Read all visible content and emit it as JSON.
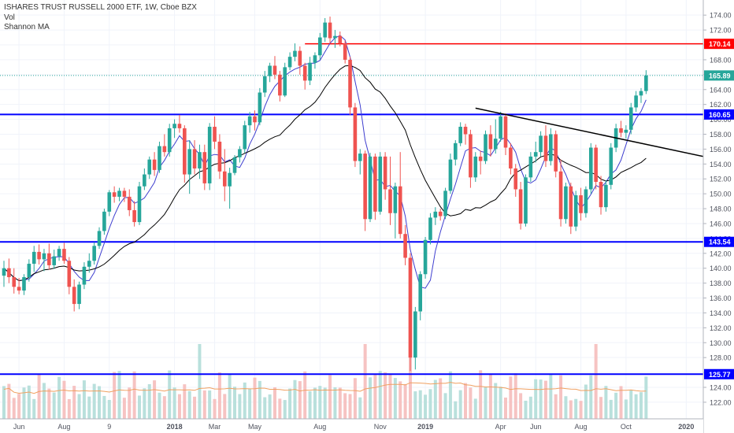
{
  "header": {
    "symbol_line": "ISHARES TRUST RUSSELL 2000 ETF, 1W, Cboe BZX",
    "indicator_1": "Vol",
    "indicator_2": "Shannon MA"
  },
  "colors": {
    "up": "#26a69a",
    "down": "#ef5350",
    "volume_up": "#b9e0dc",
    "volume_down": "#f6c3c2",
    "support_line": "#0000ff",
    "resistance_line": "#ff0000",
    "fast_ma": "#3e3ecf",
    "slow_ma": "#000000",
    "volume_ma": "#f0a060",
    "price_dotted": "#26a69a",
    "trendline": "#000000"
  },
  "chart_data": {
    "type": "candlestick",
    "title": "ISHARES TRUST RUSSELL 2000 ETF, 1W, Cboe BZX",
    "y_axis_ticks": [
      122,
      124,
      126,
      128,
      130,
      132,
      134,
      136,
      138,
      140,
      142,
      144,
      146,
      148,
      150,
      152,
      154,
      156,
      158,
      160,
      162,
      164,
      166,
      168,
      170,
      172,
      174
    ],
    "ylim": [
      120.3,
      175.5
    ],
    "x_axis_labels": [
      {
        "label": "Jun",
        "week": 3
      },
      {
        "label": "Aug",
        "week": 12
      },
      {
        "label": "9",
        "week": 21
      },
      {
        "label": "2018",
        "week": 34
      },
      {
        "label": "Mar",
        "week": 42
      },
      {
        "label": "May",
        "week": 50
      },
      {
        "label": "Aug",
        "week": 63
      },
      {
        "label": "Nov",
        "week": 75
      },
      {
        "label": "2019",
        "week": 84
      },
      {
        "label": "Apr",
        "week": 99
      },
      {
        "label": "Jun",
        "week": 106
      },
      {
        "label": "Aug",
        "week": 115
      },
      {
        "label": "Oct",
        "week": 124
      },
      {
        "label": "2020",
        "week": 136
      }
    ],
    "horizontal_levels": [
      {
        "value": 170.14,
        "label": "170.14",
        "color": "#ff0000"
      },
      {
        "value": 165.89,
        "label": "165.89",
        "color": "#26a69a"
      },
      {
        "value": 160.65,
        "label": "160.65",
        "color": "#0000ff"
      },
      {
        "value": 143.54,
        "label": "143.54",
        "color": "#0000ff"
      },
      {
        "value": 125.77,
        "label": "125.77",
        "color": "#0000ff"
      }
    ],
    "resistance_segment": {
      "from_week": 60,
      "price": 170.14
    },
    "trendline": {
      "from_week": 94,
      "from_price": 161.5,
      "to_week": 143,
      "to_price": 154.5
    },
    "candles": [
      {
        "o": 139.0,
        "h": 141.0,
        "l": 137.5,
        "c": 140.0
      },
      {
        "o": 140.0,
        "h": 141.3,
        "l": 138.0,
        "c": 138.8
      },
      {
        "o": 138.8,
        "h": 140.0,
        "l": 136.6,
        "c": 137.5
      },
      {
        "o": 137.5,
        "h": 138.7,
        "l": 136.5,
        "c": 137.0
      },
      {
        "o": 137.0,
        "h": 139.2,
        "l": 136.4,
        "c": 138.8
      },
      {
        "o": 138.8,
        "h": 141.2,
        "l": 138.2,
        "c": 140.6
      },
      {
        "o": 140.6,
        "h": 143.0,
        "l": 139.5,
        "c": 142.2
      },
      {
        "o": 142.2,
        "h": 143.2,
        "l": 140.5,
        "c": 141.2
      },
      {
        "o": 141.2,
        "h": 142.6,
        "l": 139.6,
        "c": 142.0
      },
      {
        "o": 142.0,
        "h": 143.3,
        "l": 139.8,
        "c": 140.4
      },
      {
        "o": 140.4,
        "h": 142.5,
        "l": 139.9,
        "c": 141.6
      },
      {
        "o": 141.6,
        "h": 143.0,
        "l": 141.0,
        "c": 142.6
      },
      {
        "o": 142.6,
        "h": 143.4,
        "l": 140.6,
        "c": 141.0
      },
      {
        "o": 141.0,
        "h": 141.5,
        "l": 136.5,
        "c": 137.5
      },
      {
        "o": 137.5,
        "h": 138.5,
        "l": 134.2,
        "c": 135.2
      },
      {
        "o": 135.2,
        "h": 138.2,
        "l": 134.5,
        "c": 137.8
      },
      {
        "o": 137.8,
        "h": 140.8,
        "l": 137.2,
        "c": 140.2
      },
      {
        "o": 140.2,
        "h": 142.0,
        "l": 139.4,
        "c": 141.0
      },
      {
        "o": 141.0,
        "h": 143.5,
        "l": 140.5,
        "c": 143.0
      },
      {
        "o": 143.0,
        "h": 145.5,
        "l": 142.6,
        "c": 145.0
      },
      {
        "o": 145.0,
        "h": 148.0,
        "l": 144.5,
        "c": 147.6
      },
      {
        "o": 147.6,
        "h": 150.5,
        "l": 147.0,
        "c": 150.2
      },
      {
        "o": 150.2,
        "h": 151.0,
        "l": 148.8,
        "c": 149.6
      },
      {
        "o": 149.6,
        "h": 150.8,
        "l": 149.0,
        "c": 150.4
      },
      {
        "o": 150.4,
        "h": 150.8,
        "l": 148.9,
        "c": 149.6
      },
      {
        "o": 149.6,
        "h": 150.6,
        "l": 147.0,
        "c": 147.8
      },
      {
        "o": 147.8,
        "h": 149.0,
        "l": 145.6,
        "c": 146.2
      },
      {
        "o": 146.2,
        "h": 151.6,
        "l": 145.8,
        "c": 151.0
      },
      {
        "o": 151.0,
        "h": 153.4,
        "l": 150.5,
        "c": 152.6
      },
      {
        "o": 152.6,
        "h": 155.0,
        "l": 152.0,
        "c": 154.6
      },
      {
        "o": 154.6,
        "h": 155.6,
        "l": 152.4,
        "c": 153.2
      },
      {
        "o": 153.2,
        "h": 157.0,
        "l": 152.8,
        "c": 156.4
      },
      {
        "o": 156.4,
        "h": 158.0,
        "l": 155.0,
        "c": 155.6
      },
      {
        "o": 155.6,
        "h": 159.4,
        "l": 155.0,
        "c": 158.8
      },
      {
        "o": 158.8,
        "h": 160.0,
        "l": 157.5,
        "c": 159.4
      },
      {
        "o": 159.4,
        "h": 160.6,
        "l": 158.2,
        "c": 158.8
      },
      {
        "o": 158.8,
        "h": 159.2,
        "l": 151.5,
        "c": 152.6
      },
      {
        "o": 152.6,
        "h": 157.2,
        "l": 150.0,
        "c": 156.0
      },
      {
        "o": 156.0,
        "h": 157.2,
        "l": 152.6,
        "c": 153.4
      },
      {
        "o": 153.4,
        "h": 156.6,
        "l": 152.0,
        "c": 155.6
      },
      {
        "o": 155.6,
        "h": 156.6,
        "l": 150.5,
        "c": 151.4
      },
      {
        "o": 151.4,
        "h": 159.5,
        "l": 150.5,
        "c": 159.0
      },
      {
        "o": 159.0,
        "h": 160.4,
        "l": 156.0,
        "c": 157.0
      },
      {
        "o": 157.0,
        "h": 158.0,
        "l": 152.0,
        "c": 153.0
      },
      {
        "o": 153.0,
        "h": 156.0,
        "l": 149.0,
        "c": 151.0
      },
      {
        "o": 151.0,
        "h": 153.5,
        "l": 148.0,
        "c": 152.8
      },
      {
        "o": 152.8,
        "h": 155.2,
        "l": 152.5,
        "c": 154.9
      },
      {
        "o": 154.9,
        "h": 156.4,
        "l": 154.2,
        "c": 156.0
      },
      {
        "o": 156.0,
        "h": 159.8,
        "l": 155.5,
        "c": 159.2
      },
      {
        "o": 159.2,
        "h": 161.0,
        "l": 158.2,
        "c": 160.4
      },
      {
        "o": 160.4,
        "h": 161.2,
        "l": 158.5,
        "c": 159.6
      },
      {
        "o": 159.6,
        "h": 164.2,
        "l": 159.2,
        "c": 163.6
      },
      {
        "o": 163.6,
        "h": 166.5,
        "l": 163.0,
        "c": 165.8
      },
      {
        "o": 165.8,
        "h": 167.6,
        "l": 165.0,
        "c": 167.2
      },
      {
        "o": 167.2,
        "h": 168.5,
        "l": 165.4,
        "c": 166.0
      },
      {
        "o": 166.0,
        "h": 166.5,
        "l": 162.4,
        "c": 163.2
      },
      {
        "o": 163.2,
        "h": 167.6,
        "l": 163.0,
        "c": 167.0
      },
      {
        "o": 167.0,
        "h": 169.0,
        "l": 166.6,
        "c": 168.4
      },
      {
        "o": 168.4,
        "h": 170.2,
        "l": 167.8,
        "c": 169.2
      },
      {
        "o": 169.2,
        "h": 169.8,
        "l": 166.0,
        "c": 167.2
      },
      {
        "o": 167.2,
        "h": 167.6,
        "l": 164.0,
        "c": 165.2
      },
      {
        "o": 165.2,
        "h": 168.4,
        "l": 164.6,
        "c": 167.6
      },
      {
        "o": 167.6,
        "h": 169.0,
        "l": 166.8,
        "c": 168.6
      },
      {
        "o": 168.6,
        "h": 171.6,
        "l": 168.0,
        "c": 171.0
      },
      {
        "o": 171.0,
        "h": 173.6,
        "l": 170.4,
        "c": 173.0
      },
      {
        "o": 173.0,
        "h": 173.8,
        "l": 170.2,
        "c": 170.9
      },
      {
        "o": 170.9,
        "h": 172.0,
        "l": 169.6,
        "c": 171.2
      },
      {
        "o": 171.2,
        "h": 171.8,
        "l": 169.8,
        "c": 170.2
      },
      {
        "o": 170.2,
        "h": 170.6,
        "l": 167.5,
        "c": 168.0
      },
      {
        "o": 168.0,
        "h": 168.4,
        "l": 160.6,
        "c": 161.6
      },
      {
        "o": 161.6,
        "h": 162.2,
        "l": 153.6,
        "c": 154.4
      },
      {
        "o": 154.4,
        "h": 156.0,
        "l": 152.6,
        "c": 155.4
      },
      {
        "o": 155.4,
        "h": 155.8,
        "l": 145.0,
        "c": 146.6
      },
      {
        "o": 146.6,
        "h": 155.5,
        "l": 146.2,
        "c": 155.0
      },
      {
        "o": 155.0,
        "h": 155.4,
        "l": 146.5,
        "c": 147.6
      },
      {
        "o": 147.6,
        "h": 155.6,
        "l": 147.2,
        "c": 155.0
      },
      {
        "o": 155.0,
        "h": 155.6,
        "l": 149.2,
        "c": 150.6
      },
      {
        "o": 150.6,
        "h": 155.0,
        "l": 145.8,
        "c": 147.4
      },
      {
        "o": 147.4,
        "h": 151.5,
        "l": 144.0,
        "c": 151.0
      },
      {
        "o": 151.0,
        "h": 155.6,
        "l": 144.0,
        "c": 144.6
      },
      {
        "o": 144.6,
        "h": 145.8,
        "l": 140.4,
        "c": 141.4
      },
      {
        "o": 141.4,
        "h": 142.0,
        "l": 126.2,
        "c": 128.0
      },
      {
        "o": 128.0,
        "h": 134.8,
        "l": 126.4,
        "c": 134.2
      },
      {
        "o": 134.2,
        "h": 139.6,
        "l": 133.0,
        "c": 139.2
      },
      {
        "o": 139.2,
        "h": 144.2,
        "l": 138.6,
        "c": 143.8
      },
      {
        "o": 143.8,
        "h": 147.4,
        "l": 143.2,
        "c": 146.8
      },
      {
        "o": 146.8,
        "h": 148.2,
        "l": 145.8,
        "c": 147.6
      },
      {
        "o": 147.6,
        "h": 148.0,
        "l": 146.4,
        "c": 147.0
      },
      {
        "o": 147.0,
        "h": 150.8,
        "l": 146.6,
        "c": 150.4
      },
      {
        "o": 150.4,
        "h": 155.4,
        "l": 150.0,
        "c": 154.6
      },
      {
        "o": 154.6,
        "h": 157.2,
        "l": 153.8,
        "c": 156.8
      },
      {
        "o": 156.8,
        "h": 159.6,
        "l": 156.4,
        "c": 159.0
      },
      {
        "o": 159.0,
        "h": 159.4,
        "l": 156.6,
        "c": 158.0
      },
      {
        "o": 158.0,
        "h": 158.6,
        "l": 150.8,
        "c": 152.2
      },
      {
        "o": 152.2,
        "h": 155.6,
        "l": 151.6,
        "c": 155.0
      },
      {
        "o": 155.0,
        "h": 155.8,
        "l": 152.6,
        "c": 154.4
      },
      {
        "o": 154.4,
        "h": 158.5,
        "l": 154.0,
        "c": 158.0
      },
      {
        "o": 158.0,
        "h": 159.2,
        "l": 155.0,
        "c": 156.0
      },
      {
        "o": 156.0,
        "h": 160.0,
        "l": 155.4,
        "c": 157.4
      },
      {
        "o": 157.4,
        "h": 161.0,
        "l": 157.0,
        "c": 160.4
      },
      {
        "o": 160.4,
        "h": 160.8,
        "l": 155.2,
        "c": 156.2
      },
      {
        "o": 156.2,
        "h": 156.8,
        "l": 152.6,
        "c": 153.4
      },
      {
        "o": 153.4,
        "h": 154.0,
        "l": 149.6,
        "c": 150.6
      },
      {
        "o": 150.6,
        "h": 151.6,
        "l": 145.2,
        "c": 146.0
      },
      {
        "o": 146.0,
        "h": 152.6,
        "l": 145.6,
        "c": 152.2
      },
      {
        "o": 152.2,
        "h": 155.6,
        "l": 151.6,
        "c": 155.0
      },
      {
        "o": 155.0,
        "h": 157.0,
        "l": 154.2,
        "c": 155.6
      },
      {
        "o": 155.6,
        "h": 158.4,
        "l": 155.0,
        "c": 157.8
      },
      {
        "o": 157.8,
        "h": 159.2,
        "l": 153.6,
        "c": 154.4
      },
      {
        "o": 154.4,
        "h": 158.8,
        "l": 153.8,
        "c": 158.0
      },
      {
        "o": 158.0,
        "h": 158.5,
        "l": 152.2,
        "c": 153.0
      },
      {
        "o": 153.0,
        "h": 154.6,
        "l": 145.6,
        "c": 146.6
      },
      {
        "o": 146.6,
        "h": 151.5,
        "l": 146.0,
        "c": 151.0
      },
      {
        "o": 151.0,
        "h": 151.5,
        "l": 144.6,
        "c": 145.6
      },
      {
        "o": 145.6,
        "h": 150.4,
        "l": 145.0,
        "c": 149.8
      },
      {
        "o": 149.8,
        "h": 150.8,
        "l": 146.4,
        "c": 147.4
      },
      {
        "o": 147.4,
        "h": 151.0,
        "l": 146.8,
        "c": 150.6
      },
      {
        "o": 150.6,
        "h": 156.8,
        "l": 150.0,
        "c": 156.2
      },
      {
        "o": 156.2,
        "h": 156.6,
        "l": 150.6,
        "c": 151.6
      },
      {
        "o": 151.6,
        "h": 152.4,
        "l": 147.2,
        "c": 148.2
      },
      {
        "o": 148.2,
        "h": 151.8,
        "l": 147.6,
        "c": 151.2
      },
      {
        "o": 151.2,
        "h": 156.8,
        "l": 150.6,
        "c": 156.2
      },
      {
        "o": 156.2,
        "h": 159.4,
        "l": 155.6,
        "c": 158.8
      },
      {
        "o": 158.8,
        "h": 159.8,
        "l": 157.6,
        "c": 158.2
      },
      {
        "o": 158.2,
        "h": 159.2,
        "l": 157.4,
        "c": 158.6
      },
      {
        "o": 158.6,
        "h": 162.2,
        "l": 158.0,
        "c": 161.6
      },
      {
        "o": 161.6,
        "h": 163.8,
        "l": 161.0,
        "c": 163.2
      },
      {
        "o": 163.2,
        "h": 164.2,
        "l": 162.2,
        "c": 163.8
      },
      {
        "o": 163.8,
        "h": 166.6,
        "l": 163.4,
        "c": 165.89
      }
    ]
  }
}
